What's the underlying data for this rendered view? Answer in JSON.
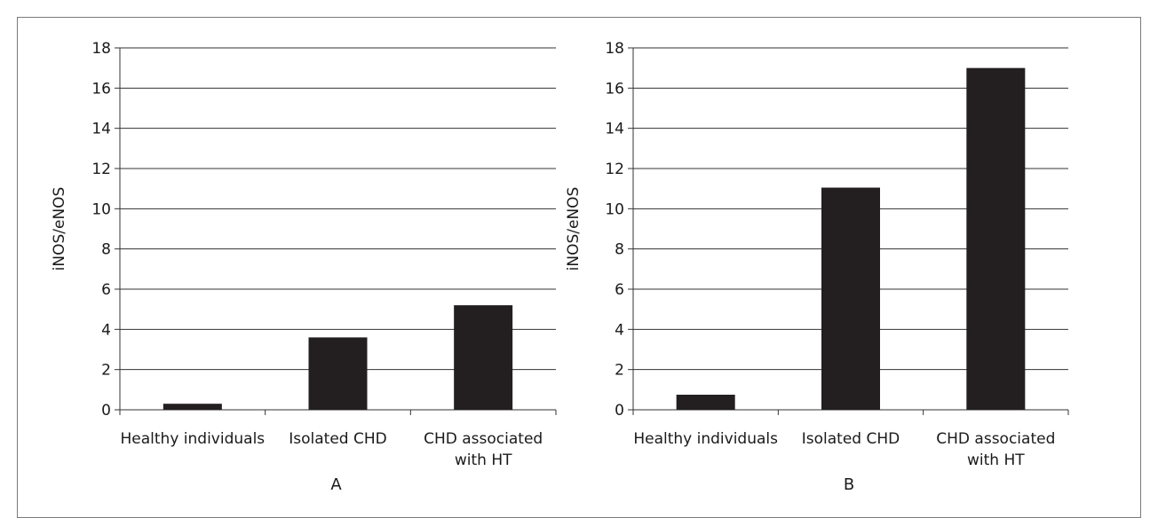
{
  "chart_data": [
    {
      "type": "bar",
      "panel_label": "A",
      "categories": [
        [
          "Healthy individuals"
        ],
        [
          "Isolated CHD"
        ],
        [
          "CHD associated",
          "with HT"
        ]
      ],
      "values": [
        0.3,
        3.6,
        5.2
      ],
      "ylabel": "iNOS/eNOS",
      "xlabel": "",
      "ylim": [
        0,
        18
      ],
      "yticks": [
        "0",
        "2",
        "4",
        "6",
        "8",
        "10",
        "12",
        "14",
        "16",
        "18"
      ],
      "grid": true,
      "bar_color": "#231f20"
    },
    {
      "type": "bar",
      "panel_label": "B",
      "categories": [
        [
          "Healthy individuals"
        ],
        [
          "Isolated CHD"
        ],
        [
          "CHD associated",
          "with HT"
        ]
      ],
      "values": [
        0.75,
        11.05,
        17.0
      ],
      "ylabel": "iNOS/eNOS",
      "xlabel": "",
      "ylim": [
        0,
        18
      ],
      "yticks": [
        "0",
        "2",
        "4",
        "6",
        "8",
        "10",
        "12",
        "14",
        "16",
        "18"
      ],
      "grid": true,
      "bar_color": "#231f20"
    }
  ]
}
